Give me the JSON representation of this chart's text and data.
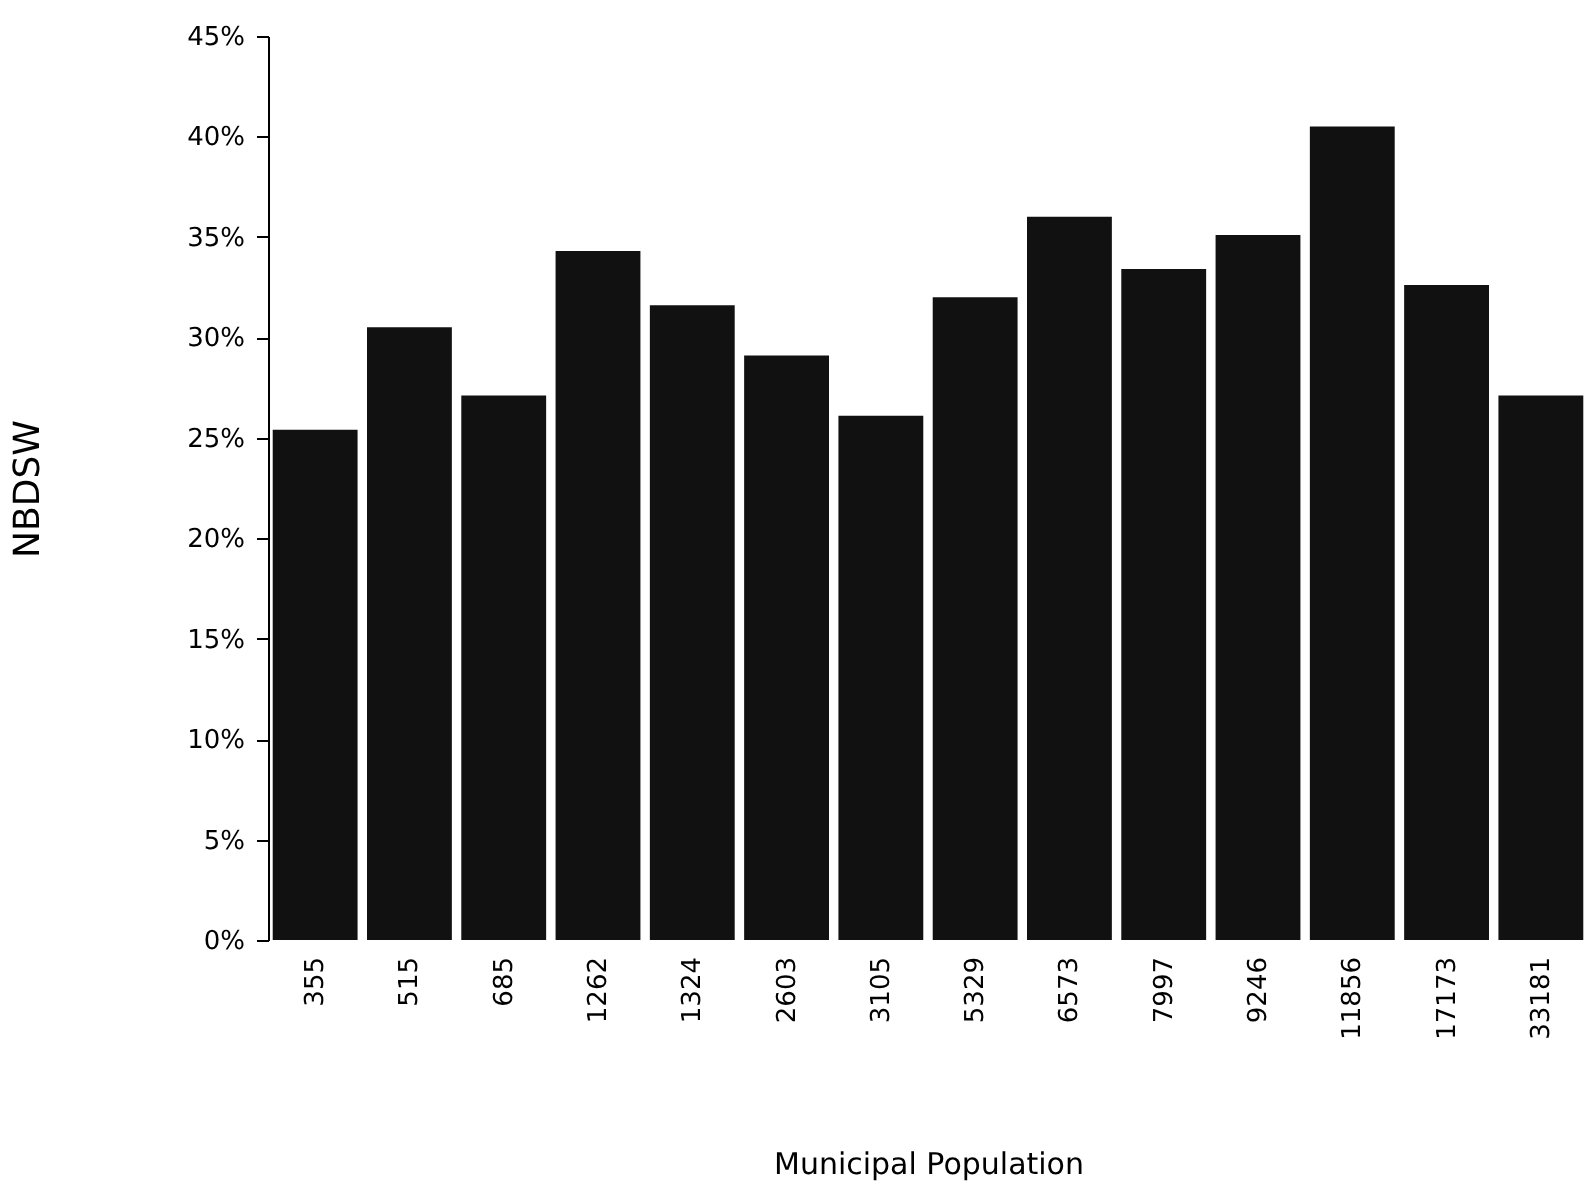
{
  "chart_data": {
    "type": "bar",
    "xlabel": "Municipal Population",
    "ylabel": "NBDSW",
    "categories": [
      "355",
      "515",
      "685",
      "1262",
      "1324",
      "2603",
      "3105",
      "5329",
      "6573",
      "7997",
      "9246",
      "11856",
      "17173",
      "33181"
    ],
    "values": [
      25.4,
      30.5,
      27.1,
      34.3,
      31.6,
      29.1,
      26.1,
      32.0,
      36.0,
      33.4,
      35.1,
      40.5,
      32.6,
      27.1
    ],
    "color": "#111111",
    "ylim": [
      0,
      45
    ],
    "yticks": [
      {
        "value": 0,
        "label": "0%"
      },
      {
        "value": 5,
        "label": "5%"
      },
      {
        "value": 10,
        "label": "10%"
      },
      {
        "value": 15,
        "label": "15%"
      },
      {
        "value": 20,
        "label": "20%"
      },
      {
        "value": 25,
        "label": "25%"
      },
      {
        "value": 30,
        "label": "30%"
      },
      {
        "value": 35,
        "label": "35%"
      },
      {
        "value": 40,
        "label": "40%"
      },
      {
        "value": 45,
        "label": "45%"
      }
    ],
    "grid": false
  }
}
